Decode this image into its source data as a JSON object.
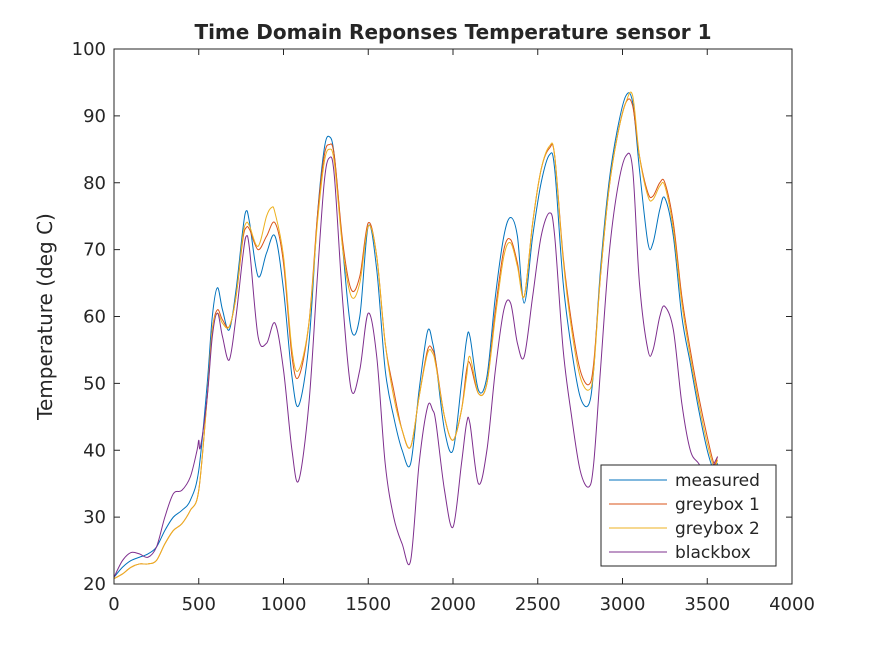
{
  "chart_data": {
    "type": "line",
    "title": "Time Domain Reponses Temperature sensor 1",
    "xlabel": "",
    "ylabel": "Temperature (deg C)",
    "xlim": [
      0,
      4000
    ],
    "ylim": [
      20,
      100
    ],
    "xticks": [
      "0",
      "500",
      "1000",
      "1500",
      "2000",
      "2500",
      "3000",
      "3500",
      "4000"
    ],
    "yticks": [
      "20",
      "30",
      "40",
      "50",
      "60",
      "70",
      "80",
      "90",
      "100"
    ],
    "grid": false,
    "legend_position": "bottom-right",
    "series": [
      {
        "name": "measured",
        "color": "#0072BD",
        "x": [
          0,
          50,
          100,
          150,
          200,
          250,
          300,
          350,
          400,
          450,
          500,
          550,
          580,
          610,
          640,
          680,
          720,
          760,
          780,
          800,
          850,
          900,
          950,
          1000,
          1050,
          1090,
          1150,
          1200,
          1240,
          1270,
          1300,
          1350,
          1400,
          1450,
          1500,
          1550,
          1600,
          1650,
          1700,
          1750,
          1800,
          1850,
          1880,
          1900,
          1950,
          2000,
          2050,
          2080,
          2100,
          2150,
          2200,
          2250,
          2300,
          2340,
          2380,
          2420,
          2470,
          2520,
          2570,
          2600,
          2650,
          2700,
          2750,
          2800,
          2830,
          2870,
          2920,
          2970,
          3020,
          3060,
          3100,
          3150,
          3180,
          3220,
          3250,
          3300,
          3350,
          3400,
          3450,
          3500,
          3540,
          3560
        ],
        "y": [
          21,
          22.5,
          23.5,
          24,
          24.5,
          25.5,
          28,
          30,
          31,
          32.5,
          37,
          50,
          60,
          64.3,
          61,
          58,
          64,
          73,
          75.8,
          74,
          66,
          69.5,
          72,
          64,
          51,
          46.7,
          56,
          75,
          85,
          86.9,
          84,
          70,
          58,
          60,
          73.5,
          67,
          52,
          45,
          40,
          38,
          49,
          57.8,
          56,
          53,
          43,
          40,
          50,
          56.5,
          57,
          49,
          51,
          63,
          72,
          74.8,
          72,
          62,
          72,
          80,
          84.2,
          82,
          65,
          55,
          48,
          46.8,
          52,
          67,
          80,
          88,
          93,
          92,
          82,
          71,
          71,
          76,
          77.7,
          72,
          60,
          53,
          46,
          40,
          37,
          38
        ]
      },
      {
        "name": "greybox 1",
        "color": "#D95319",
        "x": [
          0,
          50,
          100,
          150,
          200,
          250,
          300,
          350,
          400,
          450,
          500,
          550,
          580,
          610,
          640,
          680,
          720,
          760,
          780,
          800,
          850,
          900,
          950,
          1000,
          1050,
          1090,
          1150,
          1200,
          1240,
          1270,
          1300,
          1350,
          1400,
          1450,
          1500,
          1550,
          1600,
          1650,
          1700,
          1750,
          1800,
          1850,
          1880,
          1900,
          1950,
          2000,
          2050,
          2080,
          2100,
          2150,
          2200,
          2250,
          2300,
          2340,
          2380,
          2420,
          2470,
          2520,
          2570,
          2600,
          2650,
          2700,
          2750,
          2800,
          2830,
          2870,
          2920,
          2970,
          3020,
          3060,
          3100,
          3150,
          3180,
          3220,
          3250,
          3300,
          3350,
          3400,
          3450,
          3500,
          3540,
          3560
        ],
        "y": [
          20.8,
          21.5,
          22.5,
          23,
          23,
          23.5,
          26,
          28,
          29,
          31,
          34,
          48,
          58,
          61,
          59.5,
          58.5,
          63,
          71.5,
          73.3,
          73,
          70,
          72,
          74,
          68,
          54,
          51,
          59,
          75,
          84,
          85.7,
          84,
          71,
          64,
          66,
          74,
          69,
          56,
          49,
          43,
          40.5,
          48,
          55,
          55,
          53,
          45,
          41.5,
          46,
          52,
          53,
          48.5,
          50,
          61,
          70,
          71.5,
          68,
          63,
          74,
          82,
          85.2,
          84,
          69,
          59,
          52,
          49.8,
          53,
          66,
          79,
          87,
          92,
          91.5,
          84,
          78.5,
          78,
          80,
          80,
          74,
          63,
          55,
          48,
          42,
          38,
          39
        ]
      },
      {
        "name": "greybox 2",
        "color": "#EDB120",
        "x": [
          0,
          50,
          100,
          150,
          200,
          250,
          300,
          350,
          400,
          450,
          500,
          550,
          580,
          610,
          640,
          680,
          720,
          760,
          780,
          800,
          850,
          900,
          930,
          950,
          1000,
          1050,
          1090,
          1150,
          1200,
          1240,
          1270,
          1300,
          1350,
          1400,
          1450,
          1500,
          1550,
          1600,
          1650,
          1700,
          1750,
          1800,
          1850,
          1880,
          1900,
          1950,
          2000,
          2050,
          2080,
          2100,
          2150,
          2200,
          2250,
          2300,
          2340,
          2380,
          2420,
          2470,
          2520,
          2570,
          2600,
          2650,
          2700,
          2750,
          2800,
          2830,
          2870,
          2920,
          2970,
          3020,
          3060,
          3100,
          3150,
          3180,
          3220,
          3250,
          3300,
          3350,
          3400,
          3450,
          3500,
          3540,
          3560
        ],
        "y": [
          20.8,
          21.5,
          22.5,
          23,
          23,
          23.5,
          26,
          28,
          29,
          31,
          34,
          48,
          58,
          60.5,
          59,
          58.5,
          63,
          72,
          74,
          73.5,
          70.5,
          75,
          76.3,
          75.5,
          69,
          55,
          52,
          59,
          74,
          83,
          85,
          83,
          70,
          63,
          65,
          73.5,
          69,
          56,
          48,
          43,
          40.5,
          48,
          54.5,
          54.5,
          52.5,
          45,
          41.5,
          46,
          51,
          54,
          48.5,
          50,
          60,
          69,
          71,
          67.5,
          63,
          74,
          82,
          85.5,
          84,
          68.5,
          58,
          51,
          49,
          52,
          66,
          79,
          87,
          92,
          93,
          84,
          78,
          77.5,
          79.5,
          79.5,
          73,
          62,
          54,
          47,
          41,
          37.5,
          38.5
        ]
      },
      {
        "name": "blackbox",
        "color": "#7E2F8E",
        "x": [
          0,
          50,
          100,
          150,
          200,
          250,
          300,
          350,
          400,
          450,
          490,
          500,
          510,
          550,
          580,
          610,
          640,
          680,
          720,
          760,
          780,
          800,
          850,
          900,
          950,
          1000,
          1050,
          1090,
          1150,
          1200,
          1240,
          1270,
          1300,
          1350,
          1400,
          1450,
          1500,
          1550,
          1600,
          1650,
          1700,
          1750,
          1800,
          1850,
          1880,
          1900,
          1950,
          2000,
          2050,
          2080,
          2100,
          2150,
          2200,
          2250,
          2300,
          2340,
          2380,
          2420,
          2470,
          2520,
          2570,
          2600,
          2650,
          2700,
          2750,
          2800,
          2830,
          2870,
          2920,
          2970,
          3020,
          3060,
          3100,
          3150,
          3180,
          3220,
          3250,
          3300,
          3350,
          3400,
          3450,
          3500,
          3540,
          3560
        ],
        "y": [
          21,
          23.5,
          24.7,
          24.5,
          24,
          25.5,
          30,
          33.5,
          34,
          36,
          40,
          41.5,
          40.5,
          48,
          57,
          60.5,
          57,
          53.5,
          60,
          69,
          72,
          70,
          57,
          56,
          59,
          52,
          40,
          35.5,
          47,
          66,
          80,
          83.7,
          81,
          62,
          49,
          52,
          60.5,
          54,
          38,
          30,
          26,
          23.5,
          38,
          46.5,
          46,
          44,
          34,
          28.5,
          38,
          44,
          44,
          35,
          40,
          52,
          61,
          62,
          56,
          54,
          63,
          72,
          75.5,
          72,
          55,
          45,
          37,
          34.5,
          38,
          52,
          69,
          79,
          84,
          82,
          65,
          55,
          55,
          60,
          61.5,
          58,
          47,
          40,
          38,
          36,
          38,
          39
        ]
      }
    ]
  }
}
